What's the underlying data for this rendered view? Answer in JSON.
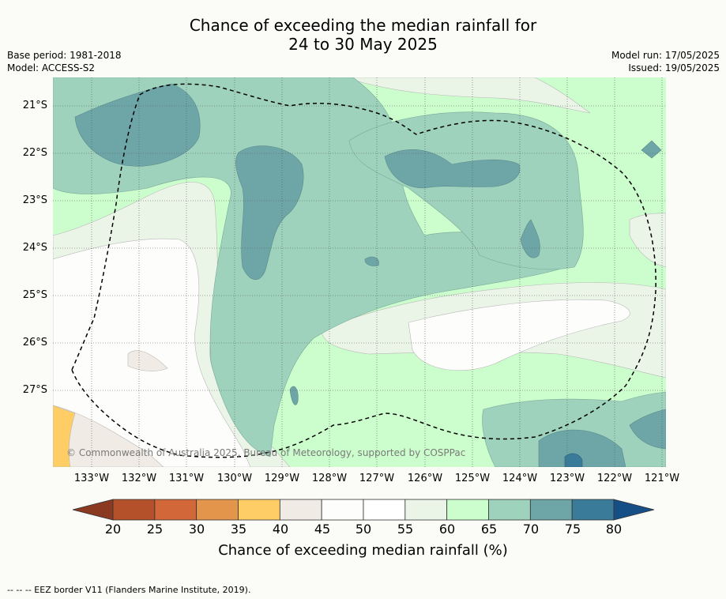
{
  "title_line1": "Chance of exceeding the median rainfall for",
  "title_line2": "24 to 30 May 2025",
  "left_meta": {
    "base_period": "Base period: 1981-2018",
    "model": "Model: ACCESS-S2"
  },
  "right_meta": {
    "model_run": "Model run: 17/05/2025",
    "issued": "Issued: 19/05/2025"
  },
  "latitude_labels": [
    "21°S",
    "22°S",
    "23°S",
    "24°S",
    "25°S",
    "26°S",
    "27°S"
  ],
  "longitude_labels": [
    "133°W",
    "132°W",
    "131°W",
    "130°W",
    "129°W",
    "128°W",
    "127°W",
    "126°W",
    "125°W",
    "124°W",
    "123°W",
    "122°W",
    "121°W"
  ],
  "copyright": "© Commonwealth of Australia 2025, Bureau of Meteorology, supported by COSPPac",
  "colorbar": {
    "ticks": [
      "20",
      "25",
      "30",
      "35",
      "40",
      "45",
      "50",
      "55",
      "60",
      "65",
      "70",
      "75",
      "80"
    ],
    "title": "Chance of exceeding median rainfall (%)",
    "colors": [
      "#b5512a",
      "#d2683a",
      "#e3954b",
      "#fecd66",
      "#f1ebe6",
      "#fdfdfb",
      "#ffffff",
      "#eaf5e8",
      "#ccfdcc",
      "#9ed2bc",
      "#6ea6a8",
      "#3b7b9a"
    ],
    "under_color": "#8a3a20",
    "over_color": "#164f86"
  },
  "legend_note": "--  --  -- EEZ border V11 (Flanders Marine Institute, 2019)."
}
